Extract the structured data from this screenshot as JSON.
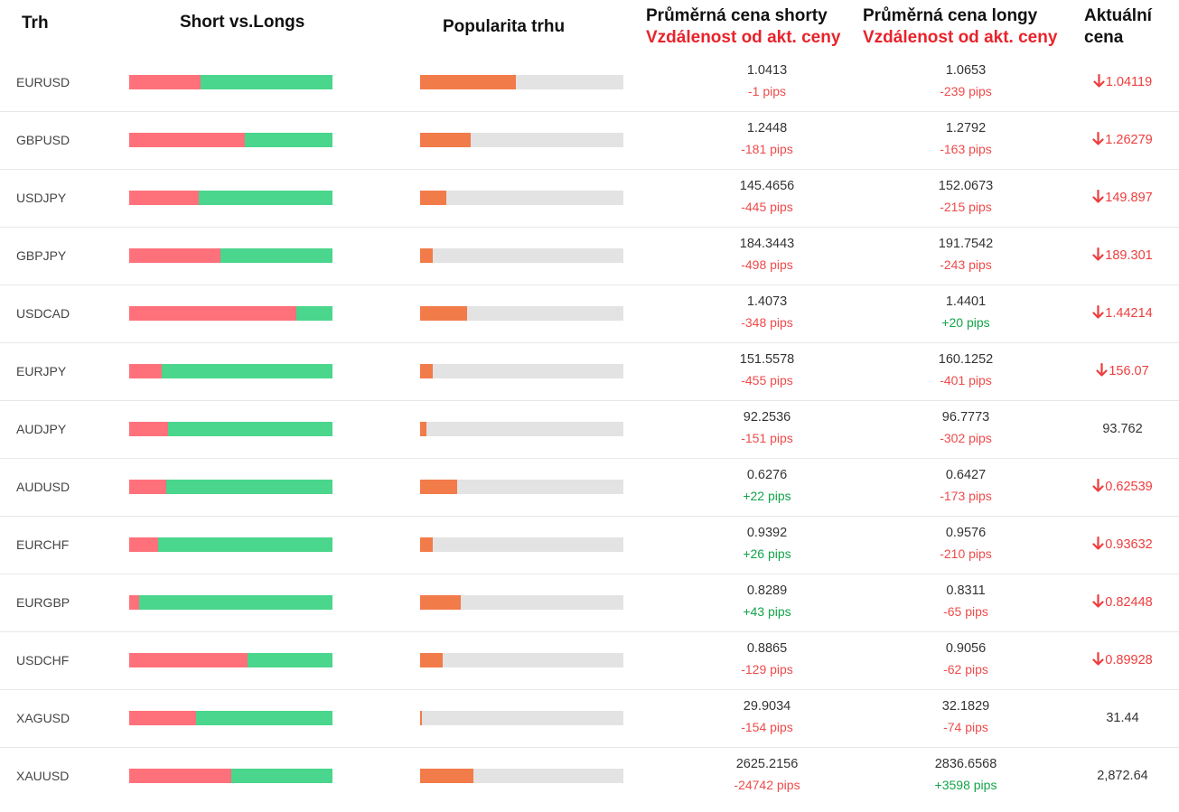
{
  "headers": {
    "market": "Trh",
    "short_vs_long": "Short vs.Longs",
    "popularity": "Popularita trhu",
    "avg_short": "Průměrná cena shorty",
    "avg_short_sub": "Vzdálenost od akt. ceny",
    "avg_long": "Průměrná cena longy",
    "avg_long_sub": "Vzdálenost od akt. ceny",
    "current_1": "Aktuální",
    "current_2": "cena"
  },
  "colors": {
    "short": "#fe717b",
    "long": "#4ad68c",
    "popularity": "#f27b4a",
    "track": "#e3e3e3",
    "negative": "#ee4b4b",
    "positive": "#12a44a"
  },
  "rows": [
    {
      "pair": "EURUSD",
      "short_pct": 35,
      "popularity_pct": 47,
      "avg_short": "1.0413",
      "short_pips": "-1 pips",
      "avg_long": "1.0653",
      "long_pips": "-239 pips",
      "current": "1.04119",
      "trend": "down"
    },
    {
      "pair": "GBPUSD",
      "short_pct": 57,
      "popularity_pct": 25,
      "avg_short": "1.2448",
      "short_pips": "-181 pips",
      "avg_long": "1.2792",
      "long_pips": "-163 pips",
      "current": "1.26279",
      "trend": "down"
    },
    {
      "pair": "USDJPY",
      "short_pct": 34,
      "popularity_pct": 13,
      "avg_short": "145.4656",
      "short_pips": "-445 pips",
      "avg_long": "152.0673",
      "long_pips": "-215 pips",
      "current": "149.897",
      "trend": "down"
    },
    {
      "pair": "GBPJPY",
      "short_pct": 45,
      "popularity_pct": 6,
      "avg_short": "184.3443",
      "short_pips": "-498 pips",
      "avg_long": "191.7542",
      "long_pips": "-243 pips",
      "current": "189.301",
      "trend": "down"
    },
    {
      "pair": "USDCAD",
      "short_pct": 82,
      "popularity_pct": 23,
      "avg_short": "1.4073",
      "short_pips": "-348 pips",
      "avg_long": "1.4401",
      "long_pips": "+20 pips",
      "current": "1.44214",
      "trend": "down"
    },
    {
      "pair": "EURJPY",
      "short_pct": 16,
      "popularity_pct": 6,
      "avg_short": "151.5578",
      "short_pips": "-455 pips",
      "avg_long": "160.1252",
      "long_pips": "-401 pips",
      "current": "156.07",
      "trend": "down"
    },
    {
      "pair": "AUDJPY",
      "short_pct": 19,
      "popularity_pct": 3,
      "avg_short": "92.2536",
      "short_pips": "-151 pips",
      "avg_long": "96.7773",
      "long_pips": "-302 pips",
      "current": "93.762",
      "trend": "none"
    },
    {
      "pair": "AUDUSD",
      "short_pct": 18,
      "popularity_pct": 18,
      "avg_short": "0.6276",
      "short_pips": "+22 pips",
      "avg_long": "0.6427",
      "long_pips": "-173 pips",
      "current": "0.62539",
      "trend": "down"
    },
    {
      "pair": "EURCHF",
      "short_pct": 14,
      "popularity_pct": 6,
      "avg_short": "0.9392",
      "short_pips": "+26 pips",
      "avg_long": "0.9576",
      "long_pips": "-210 pips",
      "current": "0.93632",
      "trend": "down"
    },
    {
      "pair": "EURGBP",
      "short_pct": 5,
      "popularity_pct": 20,
      "avg_short": "0.8289",
      "short_pips": "+43 pips",
      "avg_long": "0.8311",
      "long_pips": "-65 pips",
      "current": "0.82448",
      "trend": "down"
    },
    {
      "pair": "USDCHF",
      "short_pct": 58,
      "popularity_pct": 11,
      "avg_short": "0.8865",
      "short_pips": "-129 pips",
      "avg_long": "0.9056",
      "long_pips": "-62 pips",
      "current": "0.89928",
      "trend": "down"
    },
    {
      "pair": "XAGUSD",
      "short_pct": 33,
      "popularity_pct": 1,
      "avg_short": "29.9034",
      "short_pips": "-154 pips",
      "avg_long": "32.1829",
      "long_pips": "-74 pips",
      "current": "31.44",
      "trend": "none"
    },
    {
      "pair": "XAUUSD",
      "short_pct": 50,
      "popularity_pct": 26,
      "avg_short": "2625.2156",
      "short_pips": "-24742 pips",
      "avg_long": "2836.6568",
      "long_pips": "+3598 pips",
      "current": "2,872.64",
      "trend": "none"
    }
  ]
}
